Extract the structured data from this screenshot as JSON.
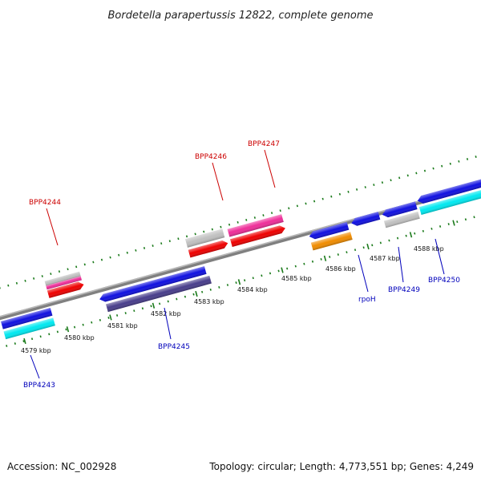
{
  "title": "Bordetella parapertussis 12822, complete genome",
  "footer": {
    "accession": "Accession: NC_002928",
    "summary": "Topology: circular; Length: 4,773,551 bp; Genes: 4,249"
  },
  "colors": {
    "backbone": "#808080",
    "tick": "#1a7a1a",
    "label_red": "#cc0000",
    "label_blue": "#0000bb",
    "feat_blue": "#1010e0",
    "feat_cyan": "#00e8f0",
    "feat_slate": "#483d8b",
    "feat_red": "#ee0000",
    "feat_pink": "#ee2e99",
    "feat_grey": "#c0c0c0",
    "feat_orange": "#f08c00"
  },
  "scale_labels": [
    "4579 kbp",
    "4580 kbp",
    "4581 kbp",
    "4582 kbp",
    "4583 kbp",
    "4584 kbp",
    "4585 kbp",
    "4586 kbp",
    "4587 kbp",
    "4588 kbp"
  ],
  "gene_labels": {
    "bpp4243": "BPP4243",
    "bpp4244": "BPP4244",
    "bpp4245": "BPP4245",
    "bpp4246": "BPP4246",
    "bpp4247": "BPP4247",
    "rpoh": "rpoH",
    "bpp4249": "BPP4249",
    "bpp4250": "BPP4250"
  }
}
